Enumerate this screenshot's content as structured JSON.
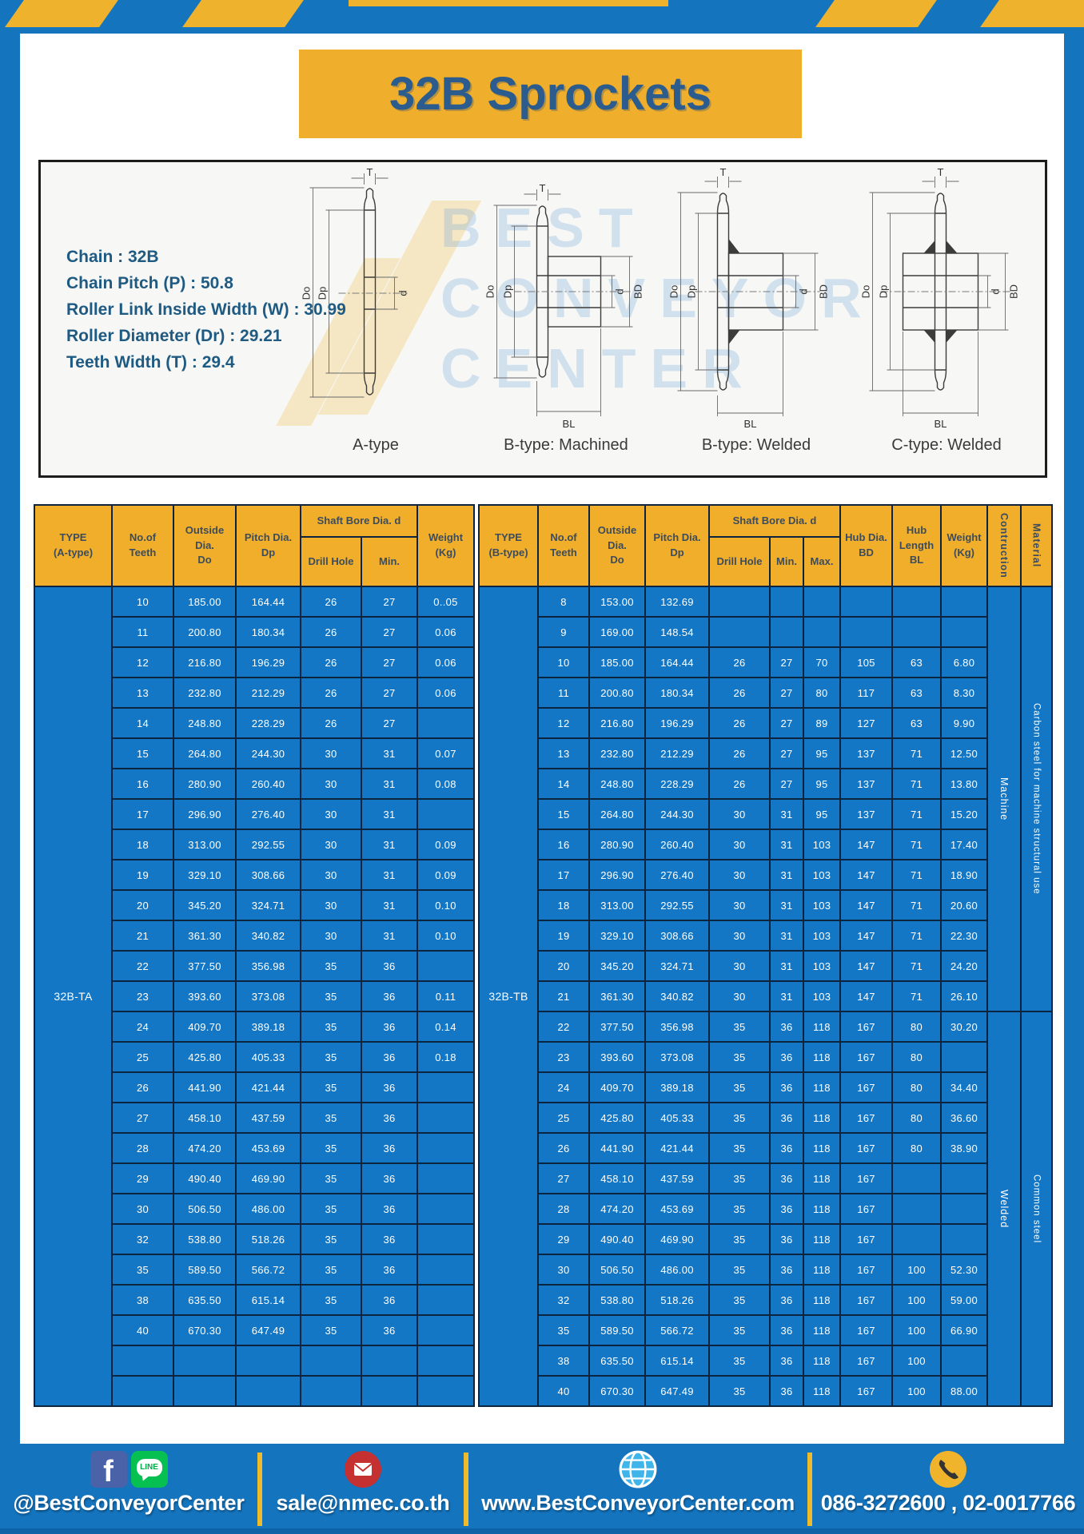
{
  "title": "32B Sprockets",
  "specs": {
    "lines": [
      "Chain : 32B",
      "Chain Pitch (P) : 50.8",
      "Roller Link Inside Width (W) : 30.99",
      "Roller Diameter (Dr) : 29.21",
      "Teeth Width (T) : 29.4"
    ]
  },
  "diagram": {
    "watermark_lines": [
      "BEST",
      "CONVEYOR",
      "CENTER"
    ],
    "figure_labels": [
      "A-type",
      "B-type: Machined",
      "B-type: Welded",
      "C-type: Welded"
    ],
    "dims": {
      "t": "T",
      "outside": "Do",
      "pitch": "Dp",
      "bore": "d",
      "hub": "BD",
      "hub_len": "BL"
    }
  },
  "table_a": {
    "type_label": "32B-TA",
    "headers": {
      "type": "TYPE\n(A-type)",
      "teeth": "No.of\nTeeth",
      "outside": "Outside\nDia.\nDo",
      "pitch": "Pitch Dia.\nDp",
      "shaft_bore": "Shaft Bore Dia. d",
      "drill": "Drill Hole",
      "min": "Min.",
      "weight": "Weight\n(Kg)"
    },
    "rows": [
      [
        "10",
        "185.00",
        "164.44",
        "26",
        "27",
        "0..05"
      ],
      [
        "11",
        "200.80",
        "180.34",
        "26",
        "27",
        "0.06"
      ],
      [
        "12",
        "216.80",
        "196.29",
        "26",
        "27",
        "0.06"
      ],
      [
        "13",
        "232.80",
        "212.29",
        "26",
        "27",
        "0.06"
      ],
      [
        "14",
        "248.80",
        "228.29",
        "26",
        "27",
        ""
      ],
      [
        "15",
        "264.80",
        "244.30",
        "30",
        "31",
        "0.07"
      ],
      [
        "16",
        "280.90",
        "260.40",
        "30",
        "31",
        "0.08"
      ],
      [
        "17",
        "296.90",
        "276.40",
        "30",
        "31",
        ""
      ],
      [
        "18",
        "313.00",
        "292.55",
        "30",
        "31",
        "0.09"
      ],
      [
        "19",
        "329.10",
        "308.66",
        "30",
        "31",
        "0.09"
      ],
      [
        "20",
        "345.20",
        "324.71",
        "30",
        "31",
        "0.10"
      ],
      [
        "21",
        "361.30",
        "340.82",
        "30",
        "31",
        "0.10"
      ],
      [
        "22",
        "377.50",
        "356.98",
        "35",
        "36",
        ""
      ],
      [
        "23",
        "393.60",
        "373.08",
        "35",
        "36",
        "0.11"
      ],
      [
        "24",
        "409.70",
        "389.18",
        "35",
        "36",
        "0.14"
      ],
      [
        "25",
        "425.80",
        "405.33",
        "35",
        "36",
        "0.18"
      ],
      [
        "26",
        "441.90",
        "421.44",
        "35",
        "36",
        ""
      ],
      [
        "27",
        "458.10",
        "437.59",
        "35",
        "36",
        ""
      ],
      [
        "28",
        "474.20",
        "453.69",
        "35",
        "36",
        ""
      ],
      [
        "29",
        "490.40",
        "469.90",
        "35",
        "36",
        ""
      ],
      [
        "30",
        "506.50",
        "486.00",
        "35",
        "36",
        ""
      ],
      [
        "32",
        "538.80",
        "518.26",
        "35",
        "36",
        ""
      ],
      [
        "35",
        "589.50",
        "566.72",
        "35",
        "36",
        ""
      ],
      [
        "38",
        "635.50",
        "615.14",
        "35",
        "36",
        ""
      ],
      [
        "40",
        "670.30",
        "647.49",
        "35",
        "36",
        ""
      ],
      [
        "",
        "",
        "",
        "",
        "",
        ""
      ],
      [
        "",
        "",
        "",
        "",
        "",
        ""
      ]
    ]
  },
  "table_b": {
    "type_label": "32B-TB",
    "headers": {
      "type": "TYPE\n(B-type)",
      "teeth": "No.of\nTeeth",
      "outside": "Outside\nDia.\nDo",
      "pitch": "Pitch Dia.\nDp",
      "shaft_bore": "Shaft Bore Dia. d",
      "drill": "Drill Hole",
      "min": "Min.",
      "max": "Max.",
      "hub_dia": "Hub Dia.\nBD",
      "hub_len": "Hub\nLength\nBL",
      "weight": "Weight\n(Kg)",
      "construction": "Contruction",
      "material": "Material"
    },
    "construction_groups": [
      {
        "label": "Machine",
        "rows": 14
      },
      {
        "label": "Welded",
        "rows": 13
      }
    ],
    "material_groups": [
      {
        "label": "Carbon steel for machine structural use",
        "rows": 14
      },
      {
        "label": "Common steel",
        "rows": 13
      }
    ],
    "rows": [
      [
        "8",
        "153.00",
        "132.69",
        "",
        "",
        "",
        "",
        "",
        ""
      ],
      [
        "9",
        "169.00",
        "148.54",
        "",
        "",
        "",
        "",
        "",
        ""
      ],
      [
        "10",
        "185.00",
        "164.44",
        "26",
        "27",
        "70",
        "105",
        "63",
        "6.80"
      ],
      [
        "11",
        "200.80",
        "180.34",
        "26",
        "27",
        "80",
        "117",
        "63",
        "8.30"
      ],
      [
        "12",
        "216.80",
        "196.29",
        "26",
        "27",
        "89",
        "127",
        "63",
        "9.90"
      ],
      [
        "13",
        "232.80",
        "212.29",
        "26",
        "27",
        "95",
        "137",
        "71",
        "12.50"
      ],
      [
        "14",
        "248.80",
        "228.29",
        "26",
        "27",
        "95",
        "137",
        "71",
        "13.80"
      ],
      [
        "15",
        "264.80",
        "244.30",
        "30",
        "31",
        "95",
        "137",
        "71",
        "15.20"
      ],
      [
        "16",
        "280.90",
        "260.40",
        "30",
        "31",
        "103",
        "147",
        "71",
        "17.40"
      ],
      [
        "17",
        "296.90",
        "276.40",
        "30",
        "31",
        "103",
        "147",
        "71",
        "18.90"
      ],
      [
        "18",
        "313.00",
        "292.55",
        "30",
        "31",
        "103",
        "147",
        "71",
        "20.60"
      ],
      [
        "19",
        "329.10",
        "308.66",
        "30",
        "31",
        "103",
        "147",
        "71",
        "22.30"
      ],
      [
        "20",
        "345.20",
        "324.71",
        "30",
        "31",
        "103",
        "147",
        "71",
        "24.20"
      ],
      [
        "21",
        "361.30",
        "340.82",
        "30",
        "31",
        "103",
        "147",
        "71",
        "26.10"
      ],
      [
        "22",
        "377.50",
        "356.98",
        "35",
        "36",
        "118",
        "167",
        "80",
        "30.20"
      ],
      [
        "23",
        "393.60",
        "373.08",
        "35",
        "36",
        "118",
        "167",
        "80",
        ""
      ],
      [
        "24",
        "409.70",
        "389.18",
        "35",
        "36",
        "118",
        "167",
        "80",
        "34.40"
      ],
      [
        "25",
        "425.80",
        "405.33",
        "35",
        "36",
        "118",
        "167",
        "80",
        "36.60"
      ],
      [
        "26",
        "441.90",
        "421.44",
        "35",
        "36",
        "118",
        "167",
        "80",
        "38.90"
      ],
      [
        "27",
        "458.10",
        "437.59",
        "35",
        "36",
        "118",
        "167",
        "",
        ""
      ],
      [
        "28",
        "474.20",
        "453.69",
        "35",
        "36",
        "118",
        "167",
        "",
        ""
      ],
      [
        "29",
        "490.40",
        "469.90",
        "35",
        "36",
        "118",
        "167",
        "",
        ""
      ],
      [
        "30",
        "506.50",
        "486.00",
        "35",
        "36",
        "118",
        "167",
        "100",
        "52.30"
      ],
      [
        "32",
        "538.80",
        "518.26",
        "35",
        "36",
        "118",
        "167",
        "100",
        "59.00"
      ],
      [
        "35",
        "589.50",
        "566.72",
        "35",
        "36",
        "118",
        "167",
        "100",
        "66.90"
      ],
      [
        "38",
        "635.50",
        "615.14",
        "35",
        "36",
        "118",
        "167",
        "100",
        ""
      ],
      [
        "40",
        "670.30",
        "647.49",
        "35",
        "36",
        "118",
        "167",
        "100",
        "88.00"
      ]
    ]
  },
  "footer": {
    "social": "@BestConveyorCenter",
    "email": "sale@nmec.co.th",
    "website": "www.BestConveyorCenter.com",
    "phone": "086-3272600 , 02-0017766",
    "facebook_glyph": "f",
    "line_glyph": "LINE"
  },
  "colors": {
    "frame_blue": "#1474BE",
    "gold": "#F0AE2B",
    "cell_blue": "#1377C6",
    "border_navy": "#0D2440"
  }
}
